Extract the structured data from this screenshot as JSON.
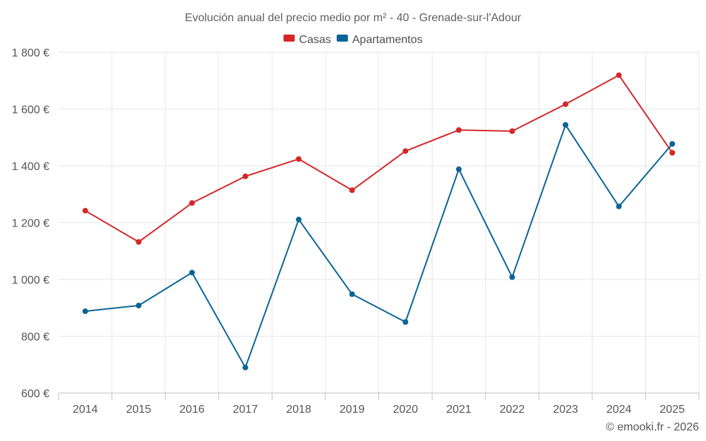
{
  "chart_data": {
    "type": "line",
    "title": "Evolución anual del precio medio por m² - 40 - Grenade-sur-l'Adour",
    "categories": [
      "2014",
      "2015",
      "2016",
      "2017",
      "2018",
      "2019",
      "2020",
      "2021",
      "2022",
      "2023",
      "2024",
      "2025"
    ],
    "series": [
      {
        "name": "Casas",
        "color": "#d62728",
        "values": [
          1242,
          1132,
          1269,
          1363,
          1424,
          1314,
          1452,
          1526,
          1522,
          1617,
          1719,
          1446
        ]
      },
      {
        "name": "Apartamentos",
        "color": "#0a6496",
        "values": [
          888,
          908,
          1024,
          690,
          1211,
          948,
          850,
          1388,
          1008,
          1544,
          1257,
          1477
        ]
      }
    ],
    "ylim": [
      600,
      1800
    ],
    "yticks": [
      600,
      800,
      1000,
      1200,
      1400,
      1600,
      1800
    ],
    "ytick_labels": [
      "600 €",
      "800 €",
      "1 000 €",
      "1 200 €",
      "1 400 €",
      "1 600 €",
      "1 800 €"
    ],
    "xlabel": "",
    "ylabel": "",
    "grid": true,
    "legend_position": "top-center"
  },
  "footer": {
    "credit": "© emooki.fr - 2026"
  }
}
